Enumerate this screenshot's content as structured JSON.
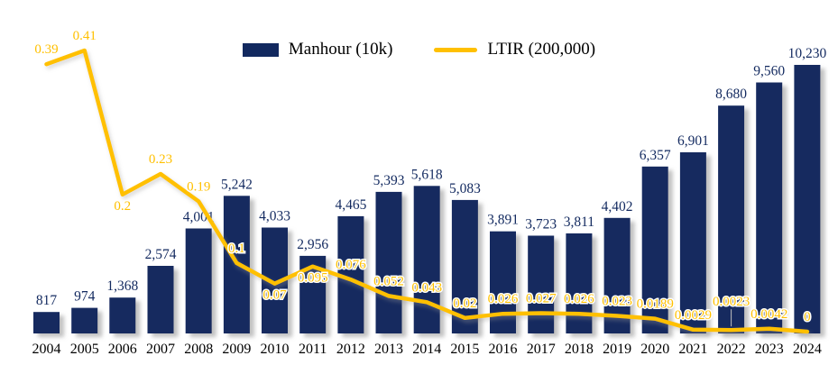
{
  "legend": {
    "bar_label": "Manhour (10k)",
    "line_label": "LTIR (200,000)"
  },
  "chart_data": {
    "type": "bar+line combo",
    "title": "",
    "categories": [
      "2004",
      "2005",
      "2006",
      "2007",
      "2008",
      "2009",
      "2010",
      "2011",
      "2012",
      "2013",
      "2014",
      "2015",
      "2016",
      "2017",
      "2018",
      "2019",
      "2020",
      "2021",
      "2022",
      "2023",
      "2024"
    ],
    "series": [
      {
        "name": "Manhour (10k)",
        "type": "bar",
        "color": "#12295F",
        "values": [
          817,
          974,
          1368,
          2574,
          4001,
          5242,
          4033,
          2956,
          4465,
          5393,
          5618,
          5083,
          3891,
          3723,
          3811,
          4402,
          6357,
          6901,
          8680,
          9560,
          10230
        ],
        "labels": [
          "817",
          "974",
          "1,368",
          "2,574",
          "4,001",
          "5,242",
          "4,033",
          "2,956",
          "4,465",
          "5,393",
          "5,618",
          "5,083",
          "3,891",
          "3,723",
          "3,811",
          "4,402",
          "6,357",
          "6,901",
          "8,680",
          "9,560",
          "10,230"
        ]
      },
      {
        "name": "LTIR (200,000)",
        "type": "line",
        "color": "#FFC000",
        "values": [
          0.39,
          0.41,
          0.2,
          0.23,
          0.19,
          0.1,
          0.07,
          0.095,
          0.076,
          0.052,
          0.043,
          0.02,
          0.026,
          0.027,
          0.026,
          0.023,
          0.0189,
          0.0029,
          0.0023,
          0.0042,
          0
        ],
        "labels": [
          "0.39",
          "0.41",
          "0.2",
          "0.23",
          "0.19",
          "0.1",
          "0.07",
          "0.095",
          "0.076",
          "0.052",
          "0.043",
          "0.02",
          "0.026",
          "0.027",
          "0.026",
          "0.023",
          "0.0189",
          "0.0029",
          "0.0023",
          "0.0042",
          "0"
        ],
        "label_sides": [
          "above",
          "above",
          "below",
          "above",
          "above",
          "above",
          "below",
          "below",
          "above",
          "above",
          "above",
          "above",
          "above",
          "above",
          "above",
          "above",
          "above",
          "above",
          "above-leader",
          "above",
          "above"
        ]
      }
    ],
    "bar_axis": {
      "min": 0,
      "max": 10230
    },
    "line_axis": {
      "min": 0,
      "max": 0.41
    },
    "grid": false,
    "axes_visible": false,
    "legend_position": "top-center",
    "background": "#FFFFFF",
    "category_label_color": "#000000",
    "leader_line_color": "#BFBFBF"
  }
}
